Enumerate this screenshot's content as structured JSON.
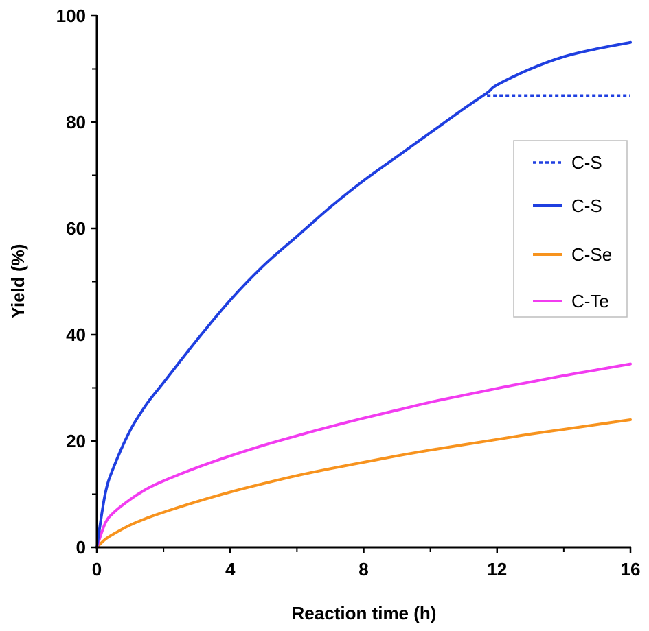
{
  "chart_data": {
    "type": "line",
    "xlabel": "Reaction time (h)",
    "ylabel": "Yield (%)",
    "xlim": [
      0,
      16
    ],
    "ylim": [
      0,
      100
    ],
    "x_ticks": [
      0,
      4,
      8,
      12,
      16
    ],
    "y_ticks": [
      0,
      20,
      40,
      60,
      80,
      100
    ],
    "grid": false,
    "legend_position": "right",
    "series": [
      {
        "name": "C-S",
        "style": "dotted",
        "color": "#1f3fe0",
        "x": [
          11.7,
          12,
          13,
          14,
          15,
          16
        ],
        "y": [
          85,
          85,
          85,
          85,
          85,
          85
        ]
      },
      {
        "name": "C-S",
        "style": "solid",
        "color": "#1f3fe0",
        "x": [
          0,
          0.25,
          0.5,
          1,
          1.5,
          2,
          3,
          4,
          5,
          6,
          7,
          8,
          9,
          10,
          11,
          11.7,
          12,
          13,
          14,
          15,
          16
        ],
        "y": [
          0,
          10,
          15,
          22,
          27,
          31,
          39,
          46.5,
          53,
          58.5,
          64,
          69,
          73.5,
          78,
          82.5,
          85.5,
          87,
          90,
          92.3,
          93.8,
          95
        ]
      },
      {
        "name": "C-Se",
        "style": "solid",
        "color": "#f7931e",
        "x": [
          0,
          0.25,
          0.5,
          1,
          1.5,
          2,
          3,
          4,
          5,
          6,
          7,
          8,
          9,
          10,
          11,
          12,
          13,
          14,
          15,
          16
        ],
        "y": [
          0,
          1.5,
          2.5,
          4.2,
          5.5,
          6.6,
          8.6,
          10.4,
          12,
          13.5,
          14.8,
          16,
          17.2,
          18.3,
          19.3,
          20.3,
          21.3,
          22.2,
          23.1,
          24
        ]
      },
      {
        "name": "C-Te",
        "style": "solid",
        "color": "#f23cf0",
        "x": [
          0,
          0.25,
          0.5,
          1,
          1.5,
          2,
          3,
          4,
          5,
          6,
          7,
          8,
          9,
          10,
          11,
          12,
          13,
          14,
          15,
          16
        ],
        "y": [
          0,
          4.5,
          6.5,
          9,
          11,
          12.5,
          15,
          17.2,
          19.2,
          21,
          22.7,
          24.3,
          25.8,
          27.3,
          28.6,
          29.9,
          31.1,
          32.3,
          33.4,
          34.5
        ]
      }
    ]
  }
}
